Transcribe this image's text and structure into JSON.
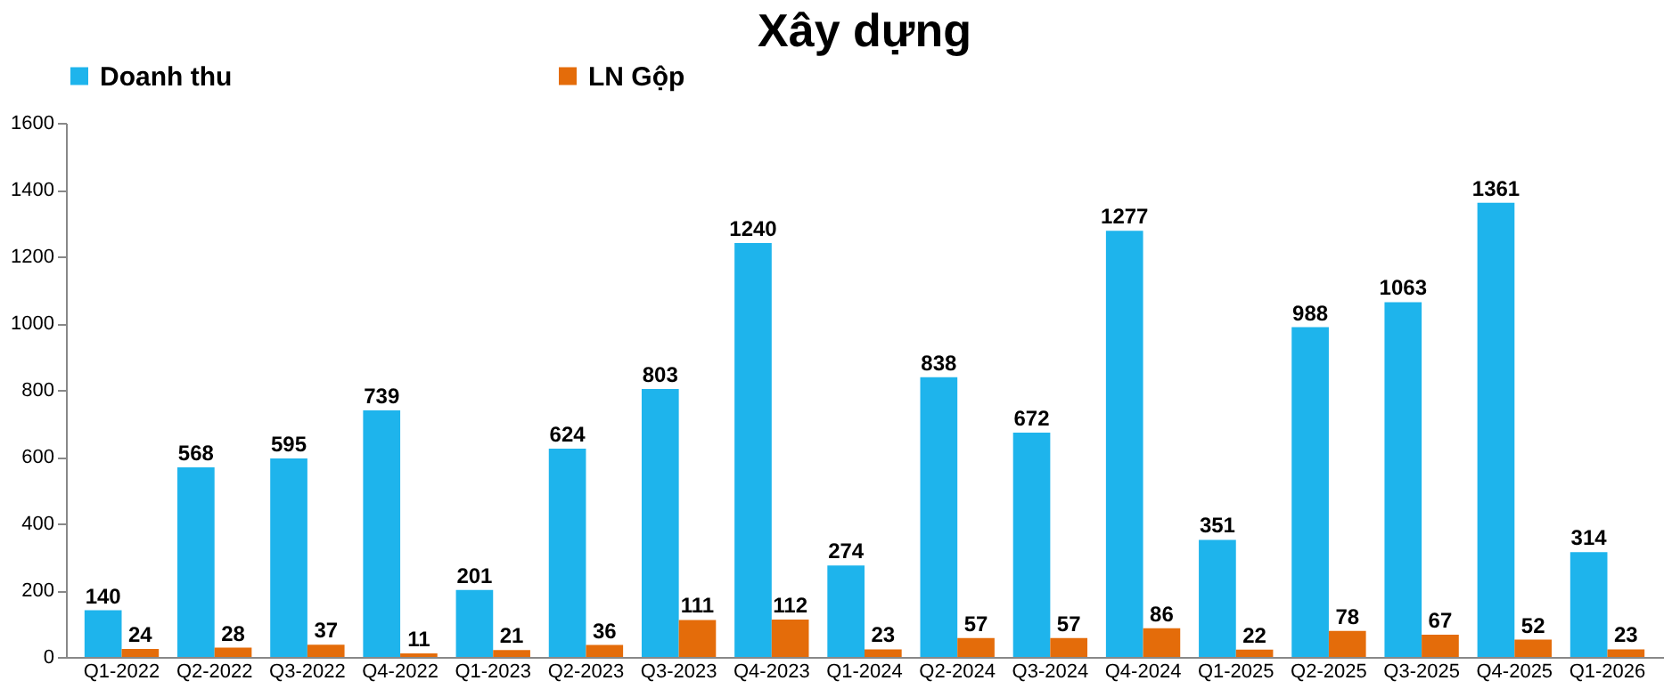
{
  "chart_data": {
    "type": "bar",
    "title": "Xây dựng",
    "categories": [
      "Q1-2022",
      "Q2-2022",
      "Q3-2022",
      "Q4-2022",
      "Q1-2023",
      "Q2-2023",
      "Q3-2023",
      "Q4-2023",
      "Q1-2024",
      "Q2-2024",
      "Q3-2024",
      "Q4-2024",
      "Q1-2025",
      "Q2-2025",
      "Q3-2025",
      "Q4-2025",
      "Q1-2026"
    ],
    "series": [
      {
        "name": "Doanh thu",
        "color": "#1eb4ec",
        "values": [
          140,
          568,
          595,
          739,
          201,
          624,
          803,
          1240,
          274,
          838,
          672,
          1277,
          351,
          988,
          1063,
          1361,
          314
        ]
      },
      {
        "name": "LN Gộp",
        "color": "#e46c0a",
        "values": [
          24,
          28,
          37,
          11,
          21,
          36,
          111,
          112,
          23,
          57,
          57,
          86,
          22,
          78,
          67,
          52,
          23
        ]
      }
    ],
    "ylim": [
      0,
      1600
    ],
    "yticks": [
      0,
      200,
      400,
      600,
      800,
      1000,
      1200,
      1400,
      1600
    ],
    "grid": false,
    "legend": "top",
    "data_labels": true
  }
}
